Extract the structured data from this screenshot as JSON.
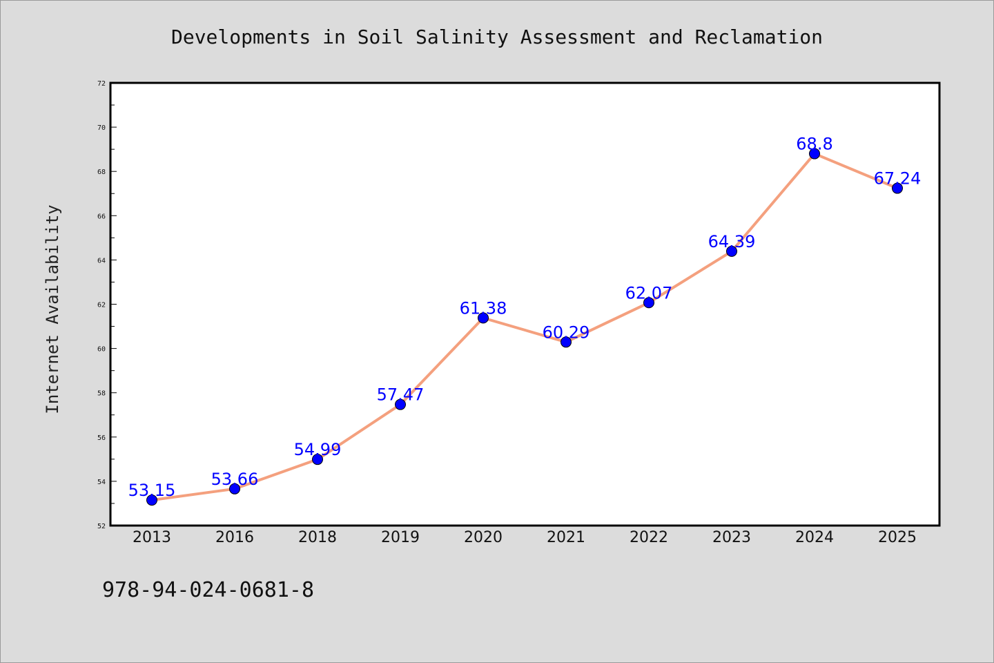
{
  "chart_data": {
    "type": "line",
    "title": "Developments in Soil Salinity Assessment and Reclamation",
    "xlabel": "",
    "ylabel": "Internet Availability",
    "categories": [
      "2013",
      "2016",
      "2018",
      "2019",
      "2020",
      "2021",
      "2022",
      "2023",
      "2024",
      "2025"
    ],
    "series": [
      {
        "values": [
          53.15,
          53.66,
          54.99,
          57.47,
          61.38,
          60.29,
          62.07,
          64.39,
          68.8,
          67.24
        ],
        "data_labels": [
          "53.15",
          "53.66",
          "54.99",
          "57.47",
          "61.38",
          "60.29",
          "62.07",
          "64.39",
          "68.8",
          "67.24"
        ],
        "line_color": "#f4a07e",
        "marker_color": "#0000ff"
      }
    ],
    "ylim": [
      52,
      72
    ],
    "yticks": [
      "52",
      "54",
      "56",
      "58",
      "60",
      "62",
      "64",
      "66",
      "68",
      "70",
      "72"
    ],
    "grid": false,
    "legend": "none",
    "plot_background": "#ffffff",
    "page_background": "#dcdcdc"
  },
  "footer": {
    "isbn": "978-94-024-0681-8"
  }
}
